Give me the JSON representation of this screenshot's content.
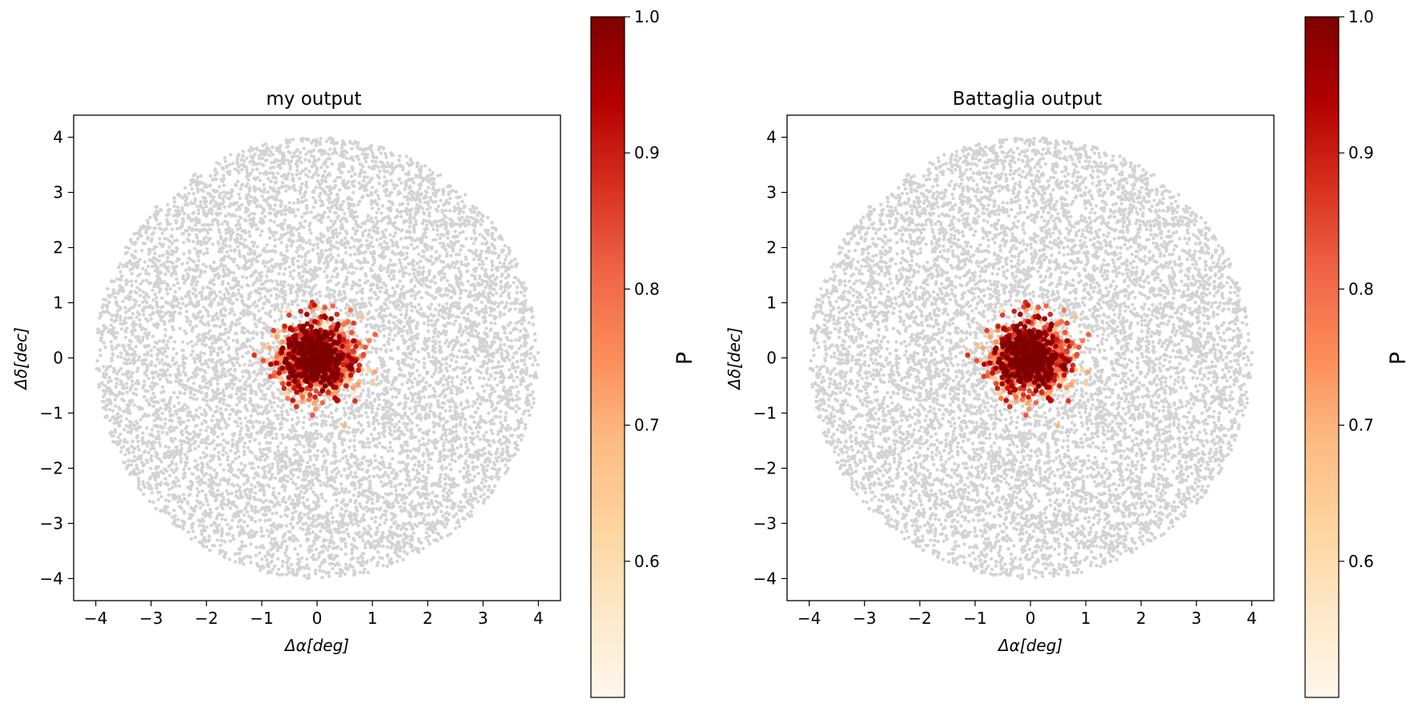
{
  "chart_data": [
    {
      "type": "scatter",
      "title": "my output",
      "xlabel": "Δα[deg]",
      "ylabel": "Δδ[dec]",
      "xlim": [
        -4.4,
        4.4
      ],
      "ylim": [
        -4.4,
        4.4
      ],
      "xticks": [
        "−4",
        "−3",
        "−2",
        "−1",
        "0",
        "1",
        "2",
        "3",
        "4"
      ],
      "yticks": [
        "4",
        "3",
        "2",
        "1",
        "0",
        "−1",
        "−2",
        "−3",
        "−4"
      ],
      "grid": false,
      "background": {
        "shape": "disk",
        "radius": 4,
        "center": [
          0,
          0
        ],
        "color": "#d3d3d3"
      },
      "members": {
        "center": [
          0,
          0
        ],
        "spread": 0.35,
        "extent": [
          -1.3,
          1.6,
          -1.3,
          1.2
        ]
      },
      "colorbar": {
        "label": "P",
        "colormap": "OrRd",
        "range": [
          0.5,
          1.0
        ],
        "ticks": [
          "1.0",
          "0.9",
          "0.8",
          "0.7",
          "0.6"
        ]
      }
    },
    {
      "type": "scatter",
      "title": "Battaglia output",
      "xlabel": "Δα[deg]",
      "ylabel": "Δδ[dec]",
      "xlim": [
        -4.4,
        4.4
      ],
      "ylim": [
        -4.4,
        4.4
      ],
      "xticks": [
        "−4",
        "−3",
        "−2",
        "−1",
        "0",
        "1",
        "2",
        "3",
        "4"
      ],
      "yticks": [
        "4",
        "3",
        "2",
        "1",
        "0",
        "−1",
        "−2",
        "−3",
        "−4"
      ],
      "grid": false,
      "background": {
        "shape": "disk",
        "radius": 4,
        "center": [
          0,
          0
        ],
        "color": "#d3d3d3"
      },
      "members": {
        "center": [
          0,
          0
        ],
        "spread": 0.35,
        "extent": [
          -1.3,
          1.6,
          -1.3,
          1.2
        ]
      },
      "colorbar": {
        "label": "P",
        "colormap": "OrRd",
        "range": [
          0.5,
          1.0
        ],
        "ticks": [
          "1.0",
          "0.9",
          "0.8",
          "0.7",
          "0.6"
        ]
      }
    }
  ]
}
